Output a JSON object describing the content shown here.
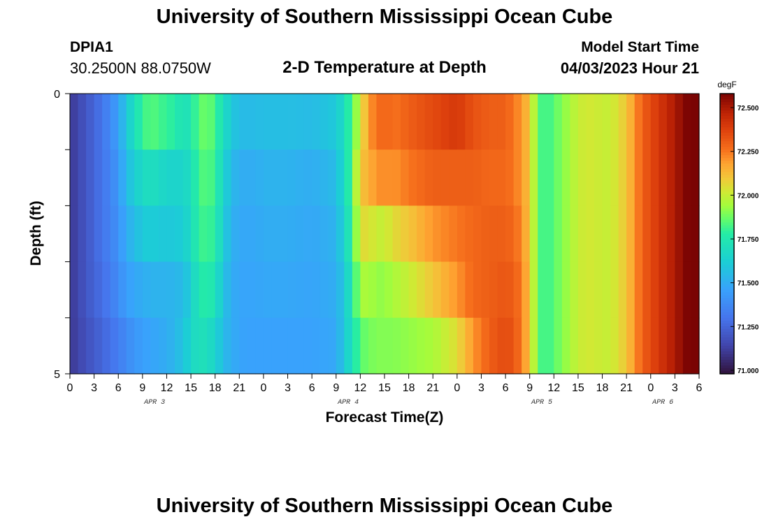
{
  "header": {
    "title": "University of Southern Mississippi Ocean Cube",
    "station": "DPIA1",
    "coords": "30.2500N  88.0750W",
    "subtitle": "2-D Temperature at Depth",
    "model_start_label": "Model Start Time",
    "model_start_value": "04/03/2023 Hour 21"
  },
  "footer": {
    "title": "University of Southern Mississippi Ocean Cube"
  },
  "chart_data": {
    "type": "heatmap",
    "xlabel": "Forecast Time(Z)",
    "ylabel": "Depth (ft)",
    "x_tick_labels": [
      "0",
      "3",
      "6",
      "9",
      "12",
      "15",
      "18",
      "21",
      "0",
      "3",
      "6",
      "9",
      "12",
      "15",
      "18",
      "21",
      "0",
      "3",
      "6",
      "9",
      "12",
      "15",
      "18",
      "21",
      "0",
      "3",
      "6"
    ],
    "date_labels": [
      {
        "label": "APR 3",
        "tick_index": 3.5
      },
      {
        "label": "APR 4",
        "tick_index": 11.5
      },
      {
        "label": "APR 5",
        "tick_index": 19.5
      },
      {
        "label": "APR 6",
        "tick_index": 24.5
      }
    ],
    "y_tick_labels": [
      "0",
      "5"
    ],
    "ylim": [
      0,
      5
    ],
    "depth_rows": [
      0,
      1,
      2,
      3,
      4
    ],
    "time_hours_from_apr3_00z": [
      0,
      78
    ],
    "colorbar": {
      "unit": "degF",
      "range": [
        70.98,
        72.58
      ],
      "tick_labels": [
        "72.500",
        "72.250",
        "72.000",
        "71.750",
        "71.500",
        "71.250",
        "71.000"
      ],
      "tick_values": [
        72.5,
        72.25,
        72.0,
        71.75,
        71.5,
        71.25,
        71.0
      ]
    },
    "series": [
      {
        "key_hours": [
          0,
          2,
          4,
          6,
          7,
          8,
          9,
          10,
          11,
          12,
          13,
          14,
          15,
          16,
          17,
          18,
          19,
          20,
          21,
          22,
          23,
          24,
          27,
          30,
          33,
          34,
          35,
          36,
          37,
          38,
          39,
          40,
          42,
          45,
          48,
          50,
          52,
          54,
          55,
          56,
          57,
          58,
          59,
          60,
          61,
          62,
          63,
          64,
          65,
          66,
          67,
          69,
          70,
          71,
          72,
          73,
          74,
          75,
          76,
          77,
          78
        ],
        "key_temps": [
          71.1,
          71.2,
          71.3,
          71.45,
          71.6,
          71.7,
          71.8,
          71.85,
          71.82,
          71.8,
          71.78,
          71.7,
          71.75,
          71.85,
          71.88,
          71.82,
          71.7,
          71.6,
          71.55,
          71.55,
          71.55,
          71.56,
          71.56,
          71.55,
          71.6,
          71.7,
          71.85,
          72.0,
          72.2,
          72.25,
          72.3,
          72.25,
          72.3,
          72.35,
          72.4,
          72.33,
          72.3,
          72.3,
          72.25,
          72.2,
          72.1,
          71.85,
          71.8,
          71.85,
          71.9,
          71.95,
          72.0,
          72.02,
          72.02,
          72.0,
          72.0,
          72.1,
          72.2,
          72.3,
          72.35,
          72.4,
          72.45,
          72.5,
          72.55,
          72.6,
          72.6
        ]
      },
      {
        "key_hours": [
          0,
          2,
          4,
          6,
          7,
          8,
          9,
          10,
          11,
          12,
          13,
          14,
          15,
          16,
          17,
          18,
          19,
          20,
          21,
          22,
          23,
          24,
          27,
          30,
          33,
          34,
          35,
          36,
          37,
          38,
          39,
          40,
          42,
          45,
          48,
          50,
          52,
          54,
          55,
          56,
          57,
          58,
          59,
          60,
          61,
          62,
          63,
          64,
          65,
          66,
          67,
          69,
          70,
          71,
          72,
          73,
          74,
          75,
          76,
          77,
          78
        ],
        "key_temps": [
          71.1,
          71.2,
          71.3,
          71.42,
          71.55,
          71.62,
          71.68,
          71.7,
          71.68,
          71.65,
          71.65,
          71.65,
          71.7,
          71.82,
          71.85,
          71.8,
          71.65,
          71.55,
          71.5,
          71.5,
          71.5,
          71.52,
          71.52,
          71.5,
          71.55,
          71.68,
          71.85,
          72.1,
          72.15,
          72.2,
          72.22,
          72.2,
          72.25,
          72.3,
          72.3,
          72.3,
          72.28,
          72.28,
          72.25,
          72.2,
          72.1,
          71.85,
          71.8,
          71.85,
          71.9,
          71.95,
          72.0,
          72.02,
          72.02,
          72.0,
          72.0,
          72.1,
          72.2,
          72.3,
          72.35,
          72.4,
          72.45,
          72.5,
          72.55,
          72.6,
          72.6
        ]
      },
      {
        "key_hours": [
          0,
          2,
          4,
          6,
          7,
          8,
          9,
          10,
          11,
          12,
          13,
          14,
          15,
          16,
          17,
          18,
          19,
          20,
          21,
          22,
          23,
          24,
          27,
          30,
          33,
          34,
          35,
          36,
          37,
          38,
          39,
          40,
          42,
          45,
          48,
          50,
          52,
          54,
          55,
          56,
          57,
          58,
          59,
          60,
          61,
          62,
          63,
          64,
          65,
          66,
          67,
          69,
          70,
          71,
          72,
          73,
          74,
          75,
          76,
          77,
          78
        ],
        "key_temps": [
          71.1,
          71.2,
          71.3,
          71.4,
          71.5,
          71.55,
          71.6,
          71.62,
          71.6,
          71.6,
          71.6,
          71.62,
          71.68,
          71.8,
          71.82,
          71.78,
          71.62,
          71.52,
          71.48,
          71.48,
          71.48,
          71.5,
          71.5,
          71.48,
          71.52,
          71.65,
          71.8,
          72.05,
          72.05,
          72.0,
          72.0,
          72.05,
          72.1,
          72.2,
          72.25,
          72.28,
          72.3,
          72.3,
          72.28,
          72.22,
          72.1,
          71.85,
          71.8,
          71.85,
          71.9,
          71.95,
          72.0,
          72.02,
          72.02,
          72.0,
          72.0,
          72.1,
          72.2,
          72.3,
          72.35,
          72.4,
          72.45,
          72.5,
          72.55,
          72.6,
          72.6
        ]
      },
      {
        "key_hours": [
          0,
          2,
          4,
          6,
          7,
          8,
          9,
          10,
          11,
          12,
          13,
          14,
          15,
          16,
          17,
          18,
          19,
          20,
          21,
          22,
          23,
          24,
          27,
          30,
          33,
          34,
          35,
          36,
          37,
          38,
          39,
          40,
          42,
          45,
          48,
          50,
          52,
          54,
          55,
          56,
          57,
          58,
          59,
          60,
          61,
          62,
          63,
          64,
          65,
          66,
          67,
          69,
          70,
          71,
          72,
          73,
          74,
          75,
          76,
          77,
          78
        ],
        "key_temps": [
          71.1,
          71.2,
          71.28,
          71.38,
          71.45,
          71.48,
          71.5,
          71.52,
          71.52,
          71.52,
          71.53,
          71.55,
          71.62,
          71.75,
          71.78,
          71.72,
          71.58,
          71.5,
          71.47,
          71.47,
          71.47,
          71.48,
          71.48,
          71.47,
          71.5,
          71.6,
          71.75,
          71.95,
          71.95,
          71.92,
          71.92,
          71.95,
          72.0,
          72.1,
          72.2,
          72.28,
          72.3,
          72.32,
          72.3,
          72.25,
          72.1,
          71.85,
          71.8,
          71.85,
          71.9,
          71.95,
          72.0,
          72.02,
          72.02,
          72.0,
          72.0,
          72.1,
          72.2,
          72.3,
          72.35,
          72.4,
          72.45,
          72.5,
          72.55,
          72.6,
          72.6
        ]
      },
      {
        "key_hours": [
          0,
          2,
          4,
          6,
          7,
          8,
          9,
          10,
          11,
          12,
          13,
          14,
          15,
          16,
          17,
          18,
          19,
          20,
          21,
          22,
          23,
          24,
          27,
          30,
          33,
          34,
          35,
          36,
          37,
          38,
          39,
          40,
          42,
          45,
          48,
          50,
          52,
          54,
          55,
          56,
          57,
          58,
          59,
          60,
          61,
          62,
          63,
          64,
          65,
          66,
          67,
          69,
          70,
          71,
          72,
          73,
          74,
          75,
          76,
          77,
          78
        ],
        "key_temps": [
          71.1,
          71.18,
          71.25,
          71.33,
          71.38,
          71.42,
          71.45,
          71.47,
          71.48,
          71.5,
          71.53,
          71.58,
          71.65,
          71.72,
          71.7,
          71.65,
          71.55,
          71.5,
          71.47,
          71.46,
          71.46,
          71.46,
          71.46,
          71.46,
          71.48,
          71.6,
          71.72,
          71.85,
          71.88,
          71.9,
          71.9,
          71.9,
          71.92,
          71.95,
          72.05,
          72.2,
          72.3,
          72.35,
          72.32,
          72.25,
          72.1,
          71.85,
          71.8,
          71.85,
          71.9,
          71.95,
          72.0,
          72.02,
          72.02,
          72.0,
          72.0,
          72.1,
          72.2,
          72.3,
          72.35,
          72.4,
          72.45,
          72.5,
          72.55,
          72.6,
          72.6
        ]
      }
    ]
  }
}
